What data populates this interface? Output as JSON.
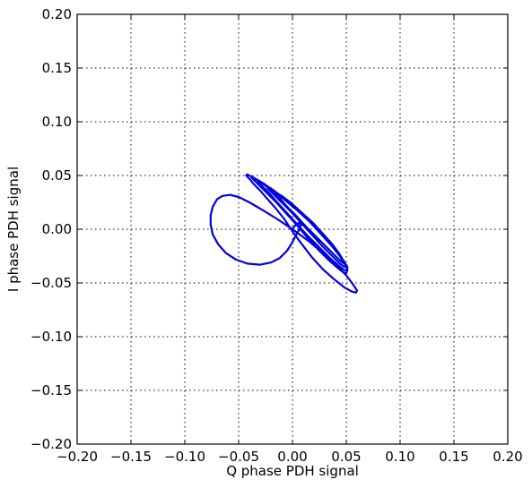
{
  "chart_data": {
    "type": "line",
    "title": "",
    "xlabel": "Q phase PDH signal",
    "ylabel": "I phase PDH signal",
    "xlim": [
      -0.2,
      0.2
    ],
    "ylim": [
      -0.2,
      0.2
    ],
    "grid": true,
    "xticks": [
      "−0.20",
      "−0.15",
      "−0.10",
      "−0.05",
      "0.00",
      "0.05",
      "0.10",
      "0.15",
      "0.20"
    ],
    "yticks": [
      "−0.20",
      "−0.15",
      "−0.10",
      "−0.05",
      "0.00",
      "0.05",
      "0.10",
      "0.15",
      "0.20"
    ],
    "series": [
      {
        "color": "#0000dd",
        "points": [
          [
            0.0,
            0.0
          ],
          [
            0.002,
            0.003
          ],
          [
            0.006,
            0.006
          ],
          [
            0.008,
            0.004
          ],
          [
            0.006,
            -0.001
          ],
          [
            0.003,
            -0.006
          ],
          [
            0.0,
            -0.012
          ],
          [
            -0.005,
            -0.02
          ],
          [
            -0.012,
            -0.027
          ],
          [
            -0.02,
            -0.031
          ],
          [
            -0.03,
            -0.033
          ],
          [
            -0.042,
            -0.032
          ],
          [
            -0.053,
            -0.028
          ],
          [
            -0.062,
            -0.022
          ],
          [
            -0.069,
            -0.014
          ],
          [
            -0.074,
            -0.005
          ],
          [
            -0.076,
            0.004
          ],
          [
            -0.076,
            0.013
          ],
          [
            -0.074,
            0.021
          ],
          [
            -0.07,
            0.028
          ],
          [
            -0.065,
            0.031
          ],
          [
            -0.058,
            0.032
          ],
          [
            -0.05,
            0.03
          ],
          [
            -0.04,
            0.025
          ],
          [
            -0.028,
            0.018
          ],
          [
            -0.015,
            0.01
          ],
          [
            0.0,
            0.0
          ],
          [
            0.015,
            -0.011
          ],
          [
            0.028,
            -0.022
          ],
          [
            0.04,
            -0.033
          ],
          [
            0.05,
            -0.043
          ],
          [
            0.056,
            -0.051
          ],
          [
            0.06,
            -0.057
          ],
          [
            0.059,
            -0.059
          ],
          [
            0.055,
            -0.058
          ],
          [
            0.048,
            -0.054
          ],
          [
            0.038,
            -0.046
          ],
          [
            0.028,
            -0.037
          ],
          [
            0.018,
            -0.026
          ],
          [
            0.008,
            -0.013
          ],
          [
            0.0,
            -0.002
          ],
          [
            -0.008,
            0.01
          ],
          [
            -0.016,
            0.02
          ],
          [
            -0.024,
            0.029
          ],
          [
            -0.03,
            0.036
          ],
          [
            -0.036,
            0.042
          ],
          [
            -0.04,
            0.047
          ],
          [
            -0.043,
            0.05
          ],
          [
            -0.042,
            0.051
          ],
          [
            -0.038,
            0.049
          ],
          [
            -0.03,
            0.044
          ],
          [
            -0.02,
            0.037
          ],
          [
            -0.008,
            0.028
          ],
          [
            0.004,
            0.018
          ],
          [
            0.016,
            0.007
          ],
          [
            0.026,
            -0.004
          ],
          [
            0.036,
            -0.015
          ],
          [
            0.044,
            -0.025
          ],
          [
            0.049,
            -0.033
          ],
          [
            0.051,
            -0.038
          ],
          [
            0.05,
            -0.041
          ],
          [
            0.047,
            -0.04
          ],
          [
            0.042,
            -0.036
          ],
          [
            0.034,
            -0.029
          ],
          [
            0.024,
            -0.019
          ],
          [
            0.014,
            -0.008
          ],
          [
            0.004,
            0.004
          ],
          [
            -0.006,
            0.015
          ],
          [
            -0.015,
            0.025
          ],
          [
            -0.023,
            0.033
          ],
          [
            -0.03,
            0.04
          ],
          [
            -0.035,
            0.045
          ],
          [
            -0.038,
            0.048
          ],
          [
            -0.036,
            0.048
          ],
          [
            -0.031,
            0.045
          ],
          [
            -0.022,
            0.039
          ],
          [
            -0.011,
            0.031
          ],
          [
            0.001,
            0.021
          ],
          [
            0.013,
            0.01
          ],
          [
            0.024,
            -0.001
          ],
          [
            0.034,
            -0.012
          ],
          [
            0.042,
            -0.022
          ],
          [
            0.048,
            -0.03
          ],
          [
            0.051,
            -0.035
          ],
          [
            0.051,
            -0.038
          ],
          [
            0.048,
            -0.038
          ],
          [
            0.043,
            -0.034
          ],
          [
            0.035,
            -0.027
          ],
          [
            0.025,
            -0.017
          ],
          [
            0.014,
            -0.006
          ],
          [
            0.004,
            0.005
          ],
          [
            -0.006,
            0.016
          ],
          [
            -0.015,
            0.026
          ],
          [
            -0.022,
            0.034
          ],
          [
            -0.028,
            0.04
          ],
          [
            -0.032,
            0.044
          ],
          [
            -0.031,
            0.045
          ],
          [
            -0.026,
            0.042
          ],
          [
            -0.018,
            0.036
          ],
          [
            -0.007,
            0.028
          ],
          [
            0.005,
            0.018
          ],
          [
            0.016,
            0.007
          ],
          [
            0.027,
            -0.004
          ],
          [
            0.036,
            -0.014
          ],
          [
            0.043,
            -0.023
          ],
          [
            0.048,
            -0.03
          ],
          [
            0.05,
            -0.034
          ],
          [
            0.048,
            -0.035
          ],
          [
            0.044,
            -0.032
          ],
          [
            0.037,
            -0.025
          ],
          [
            0.028,
            -0.016
          ],
          [
            0.018,
            -0.005
          ],
          [
            0.008,
            0.006
          ],
          [
            -0.002,
            0.017
          ],
          [
            -0.011,
            0.026
          ],
          [
            -0.018,
            0.033
          ],
          [
            -0.023,
            0.038
          ],
          [
            -0.024,
            0.04
          ],
          [
            -0.02,
            0.038
          ],
          [
            -0.012,
            0.032
          ],
          [
            -0.002,
            0.024
          ],
          [
            0.009,
            0.014
          ],
          [
            0.02,
            0.003
          ],
          [
            0.03,
            -0.008
          ],
          [
            0.038,
            -0.017
          ],
          [
            0.044,
            -0.025
          ],
          [
            0.048,
            -0.03
          ],
          [
            0.048,
            -0.032
          ],
          [
            0.045,
            -0.03
          ],
          [
            0.04,
            -0.025
          ],
          [
            0.032,
            -0.017
          ],
          [
            0.022,
            -0.007
          ],
          [
            0.012,
            0.003
          ],
          [
            0.003,
            0.013
          ],
          [
            -0.006,
            0.022
          ],
          [
            -0.012,
            0.029
          ],
          [
            -0.016,
            0.033
          ],
          [
            -0.015,
            0.034
          ],
          [
            -0.01,
            0.031
          ],
          [
            -0.002,
            0.025
          ],
          [
            0.008,
            0.016
          ],
          [
            0.019,
            0.006
          ],
          [
            0.029,
            -0.005
          ],
          [
            0.037,
            -0.014
          ],
          [
            0.043,
            -0.022
          ],
          [
            0.046,
            -0.027
          ],
          [
            0.046,
            -0.029
          ]
        ]
      }
    ]
  }
}
